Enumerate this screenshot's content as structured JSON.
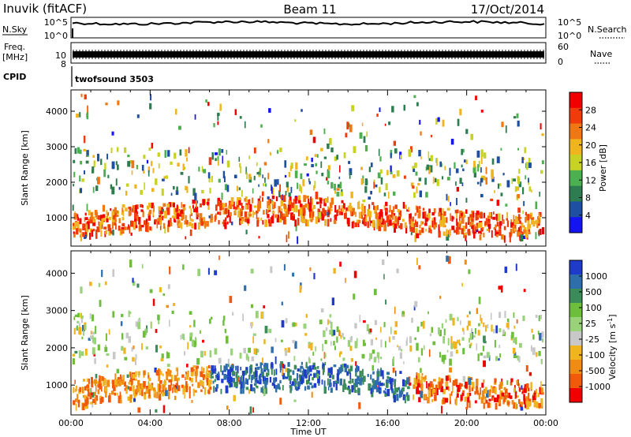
{
  "header": {
    "station": "Inuvik (fitACF)",
    "beam": "Beam 11",
    "date": "17/Oct/2014"
  },
  "sky_panel": {
    "left_label": "N.Sky",
    "left_ticks": [
      "10^5",
      "10^0"
    ],
    "right_ticks": [
      "10^5",
      "10^0"
    ],
    "right_label": "N.Search"
  },
  "freq_panel": {
    "left_label_line1": "Freq.",
    "left_label_line2": "[MHz]",
    "left_ticks": [
      "10",
      "8"
    ],
    "right_ticks": [
      "60",
      "0"
    ],
    "right_label": "Nave"
  },
  "cpid_panel": {
    "label": "CPID",
    "program": "twofsound 3503"
  },
  "chart_data": [
    {
      "type": "heatmap",
      "name": "power",
      "ylabel": "Slant Range [km]",
      "yticks": [
        "1000",
        "2000",
        "3000",
        "4000"
      ],
      "ylim": [
        200,
        4600
      ],
      "xlim": [
        0,
        24
      ],
      "colorbar_label": "Power [dB]",
      "colorbar_ticks": [
        "4",
        "8",
        "12",
        "16",
        "20",
        "24",
        "28"
      ],
      "colorbar_range": [
        0,
        32
      ],
      "colors": [
        "#1414f0",
        "#1e4fa0",
        "#2e7d50",
        "#4caf50",
        "#c8d224",
        "#f0b41e",
        "#f07814",
        "#f03c0a",
        "#f00000"
      ],
      "main_band": {
        "center_km": [
          820,
          980,
          1100,
          1200,
          1250,
          1300,
          1280,
          1150,
          1000,
          900,
          850,
          800
        ],
        "level": "high"
      }
    },
    {
      "type": "heatmap",
      "name": "velocity",
      "ylabel": "Slant Range [km]",
      "yticks": [
        "1000",
        "2000",
        "3000",
        "4000"
      ],
      "ylim": [
        200,
        4600
      ],
      "xlim": [
        0,
        24
      ],
      "colorbar_label": "Velocity [m s^-1]",
      "colorbar_ticks": [
        "1000",
        "500",
        "100",
        "25",
        "-25",
        "-100",
        "-500",
        "-1000"
      ],
      "colors": [
        "#1e3cc8",
        "#2e6eaa",
        "#3c8c5a",
        "#6cbe3c",
        "#9ad27a",
        "#c8c8c8",
        "#f0b41e",
        "#f08c14",
        "#f05a0a",
        "#f00000"
      ]
    }
  ],
  "x_axis": {
    "ticks": [
      "00:00",
      "04:00",
      "08:00",
      "12:00",
      "16:00",
      "20:00",
      "00:00"
    ],
    "label": "Time UT"
  }
}
